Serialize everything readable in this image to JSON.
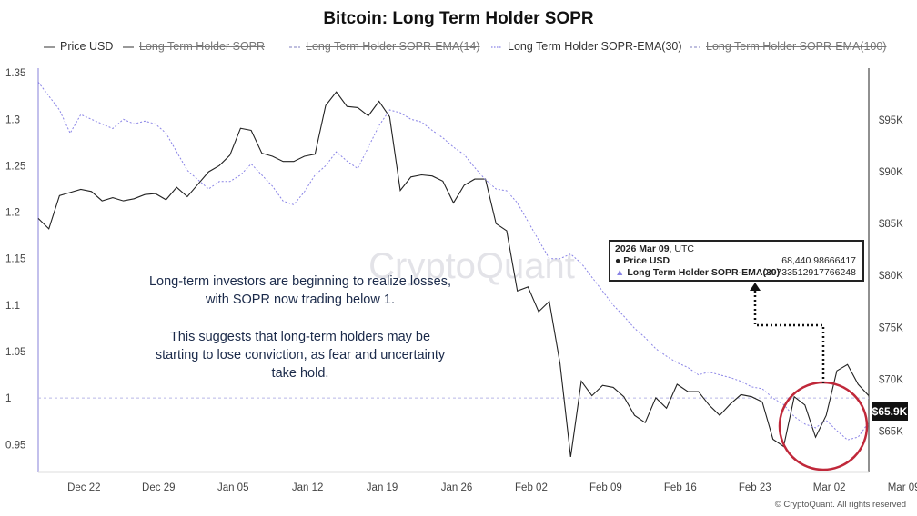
{
  "title": "Bitcoin: Long Term Holder SOPR",
  "legend": [
    {
      "label": "Price USD",
      "style": "solid",
      "color": "#555555",
      "enabled": true
    },
    {
      "label": "Long Term Holder SOPR",
      "style": "solid",
      "color": "#555555",
      "enabled": false
    },
    {
      "label": "Long Term Holder SOPR-EMA(14)",
      "style": "dashed",
      "color": "#9999cc",
      "enabled": false
    },
    {
      "label": "Long Term Holder SOPR-EMA(30)",
      "style": "dotted",
      "color": "#8a84e6",
      "enabled": true
    },
    {
      "label": "Long Term Holder SOPR-EMA(100)",
      "style": "dashed",
      "color": "#9999cc",
      "enabled": false
    }
  ],
  "watermark": "CryptoQuant",
  "annotation": {
    "line1": "Long-term investors are beginning to realize losses,",
    "line2": "with SOPR now trading below 1.",
    "line3": "This suggests that long-term holders may be",
    "line4": "starting to lose conviction, as fear and uncertainty",
    "line5": "take hold."
  },
  "tooltip": {
    "date": "2026 Mar 09",
    "tz": ", UTC",
    "row1_label": "Price USD",
    "row1_value": "68,440.98666417",
    "row2_label": "Long Term Holder SOPR-EMA(30)",
    "row2_value": "0.9733512917766248"
  },
  "price_tag": "$65.9K",
  "copyright": "© CryptoQuant. All rights reserved",
  "chart_data": {
    "type": "line",
    "title": "Bitcoin: Long Term Holder SOPR",
    "x_ticks": [
      "Dec 22",
      "Dec 29",
      "Jan 05",
      "Jan 12",
      "Jan 19",
      "Jan 26",
      "Feb 02",
      "Feb 09",
      "Feb 16",
      "Feb 23",
      "Mar 02",
      "Mar 09"
    ],
    "y_left": {
      "ticks": [
        "1.35",
        "1.3",
        "1.25",
        "1.2",
        "1.15",
        "1.1",
        "1.05",
        "1",
        "0.95"
      ],
      "range": [
        0.92,
        1.355
      ],
      "reference": 1.0
    },
    "y_right": {
      "ticks": [
        "$95K",
        "$90K",
        "$85K",
        "$80K",
        "$75K",
        "$70K",
        "$65K"
      ],
      "range": [
        61000,
        100000
      ]
    },
    "x_range_days": [
      0,
      78
    ],
    "series": [
      {
        "name": "Price USD",
        "axis": "right",
        "color": "#222222",
        "x": [
          0,
          1,
          2,
          3,
          4,
          5,
          6,
          7,
          8,
          9,
          10,
          11,
          12,
          13,
          14,
          15,
          16,
          17,
          18,
          19,
          20,
          21,
          22,
          23,
          24,
          25,
          26,
          27,
          28,
          29,
          30,
          31,
          32,
          33,
          34,
          35,
          36,
          37,
          38,
          39,
          40,
          41,
          42,
          43,
          44,
          45,
          46,
          47,
          48,
          49,
          50,
          51,
          52,
          53,
          54,
          55,
          56,
          57,
          58,
          59,
          60,
          61,
          62,
          63,
          64,
          65,
          66,
          67,
          68,
          69,
          70,
          71,
          72,
          73,
          74,
          75,
          76,
          77,
          78
        ],
        "values": [
          85500,
          84500,
          87700,
          88000,
          88300,
          88100,
          87200,
          87500,
          87200,
          87400,
          87800,
          87900,
          87300,
          88500,
          87600,
          88800,
          90000,
          90600,
          91600,
          94200,
          94000,
          91800,
          91500,
          91000,
          91000,
          91500,
          91700,
          96400,
          97700,
          96300,
          96200,
          95400,
          96800,
          95300,
          88200,
          89500,
          89700,
          89600,
          89100,
          87000,
          88700,
          89300,
          89300,
          85000,
          84300,
          78500,
          78900,
          76500,
          77500,
          71500,
          62500,
          69800,
          68400,
          69400,
          69200,
          68300,
          66500,
          65800,
          68200,
          67200,
          69500,
          68800,
          68800,
          67500,
          66500,
          67600,
          68500,
          68300,
          67800,
          64200,
          63500,
          68300,
          67500,
          64400,
          66500,
          70800,
          71400,
          69500,
          68400
        ]
      },
      {
        "name": "Long Term Holder SOPR-EMA(30)",
        "axis": "left",
        "color": "#8a84e6",
        "x": [
          0,
          1,
          2,
          3,
          4,
          5,
          6,
          7,
          8,
          9,
          10,
          11,
          12,
          13,
          14,
          15,
          16,
          17,
          18,
          19,
          20,
          21,
          22,
          23,
          24,
          25,
          26,
          27,
          28,
          29,
          30,
          31,
          32,
          33,
          34,
          35,
          36,
          37,
          38,
          39,
          40,
          41,
          42,
          43,
          44,
          45,
          46,
          47,
          48,
          49,
          50,
          51,
          52,
          53,
          54,
          55,
          56,
          57,
          58,
          59,
          60,
          61,
          62,
          63,
          64,
          65,
          66,
          67,
          68,
          69,
          70,
          71,
          72,
          73,
          74,
          75,
          76,
          77,
          78
        ],
        "values": [
          1.34,
          1.325,
          1.31,
          1.285,
          1.305,
          1.3,
          1.295,
          1.29,
          1.3,
          1.295,
          1.298,
          1.295,
          1.285,
          1.265,
          1.245,
          1.235,
          1.225,
          1.233,
          1.233,
          1.24,
          1.252,
          1.24,
          1.228,
          1.212,
          1.208,
          1.222,
          1.24,
          1.25,
          1.265,
          1.255,
          1.247,
          1.27,
          1.293,
          1.31,
          1.307,
          1.3,
          1.297,
          1.288,
          1.28,
          1.27,
          1.262,
          1.248,
          1.235,
          1.225,
          1.223,
          1.21,
          1.19,
          1.17,
          1.15,
          1.15,
          1.155,
          1.145,
          1.13,
          1.115,
          1.1,
          1.088,
          1.075,
          1.065,
          1.053,
          1.045,
          1.038,
          1.033,
          1.025,
          1.028,
          1.025,
          1.022,
          1.018,
          1.012,
          1.01,
          1.0,
          0.993,
          0.98,
          0.972,
          0.968,
          0.976,
          0.965,
          0.955,
          0.958,
          0.974
        ]
      }
    ]
  }
}
